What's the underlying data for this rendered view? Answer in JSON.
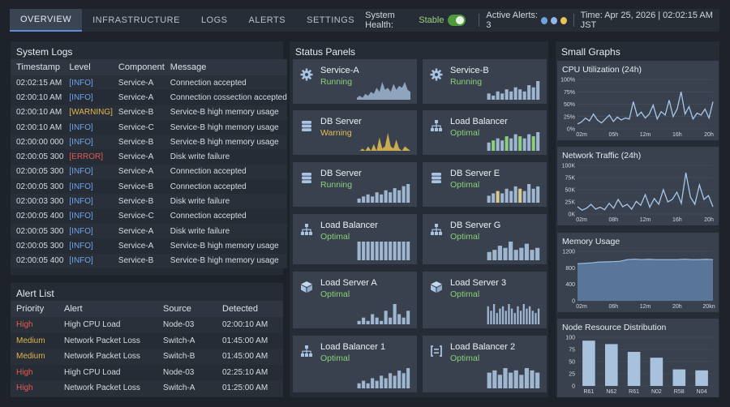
{
  "nav": {
    "tabs": [
      "OVERVIEW",
      "INFRASTRUCTURE",
      "LOGS",
      "ALERTS",
      "SETTINGS"
    ],
    "health_label": "System Health:",
    "health_value": "Stable",
    "alerts_label": "Active Alerts: 3",
    "time": "Time: Apr 25, 2026 | 02:02:15 AM JST",
    "alert_dot_colors": [
      "#6fa3de",
      "#8fb8e8",
      "#e9c453"
    ]
  },
  "logs": {
    "title": "System Logs",
    "columns": [
      "Timestamp",
      "Level",
      "Component",
      "Message"
    ],
    "rows": [
      {
        "t": "02:02:15 AM",
        "level": "[INFO]",
        "comp": "Service-A",
        "msg": "Connection accepted"
      },
      {
        "t": "02:00:10 AM",
        "level": "[INFO]",
        "comp": "Service-A",
        "msg": "Connection cossection accepted"
      },
      {
        "t": "02:00:10 AM",
        "level": "[WARNING]",
        "comp": "Service-B",
        "msg": "Service-B high memory usage"
      },
      {
        "t": "02:00:10 AM",
        "level": "[INFO]",
        "comp": "Service-C",
        "msg": "Service-B high memory usage"
      },
      {
        "t": "02:00:00 000",
        "level": "[INFO]",
        "comp": "Service-B",
        "msg": "Service-B high memory usage"
      },
      {
        "t": "02:00:05 300",
        "level": "[ERROR]",
        "comp": "Service-A",
        "msg": "Disk write failure"
      },
      {
        "t": "02:00:05 300",
        "level": "[INFO]",
        "comp": "Service-A",
        "msg": "Connection accepted"
      },
      {
        "t": "02:00:05 300",
        "level": "[INFO]",
        "comp": "Service-B",
        "msg": "Connection accepted"
      },
      {
        "t": "02:00:03 300",
        "level": "[INFO]",
        "comp": "Service-B",
        "msg": "Disk write failure"
      },
      {
        "t": "02:00:05 400",
        "level": "[INFO]",
        "comp": "Service-C",
        "msg": "Connection accepted"
      },
      {
        "t": "02:00:05 300",
        "level": "[INFO]",
        "comp": "Service-A",
        "msg": "Disk write failure"
      },
      {
        "t": "02:00:05 300",
        "level": "[INFO]",
        "comp": "Service-A",
        "msg": "Service-B high memory usage"
      },
      {
        "t": "02:00:05 400",
        "level": "[INFO]",
        "comp": "Service-B",
        "msg": "Service-B high memory usage"
      }
    ]
  },
  "alerts": {
    "title": "Alert List",
    "columns": [
      "Priority",
      "Alert",
      "Source",
      "Detected"
    ],
    "rows": [
      {
        "p": "High",
        "alert": "High CPU Load",
        "src": "Node-03",
        "time": "02:00:10 AM"
      },
      {
        "p": "Medium",
        "alert": "Network Packet Loss",
        "src": "Switch-A",
        "time": "01:45:00 AM"
      },
      {
        "p": "Medium",
        "alert": "Network Packet Loss",
        "src": "Switch-B",
        "time": "01:45:00 AM"
      },
      {
        "p": "High",
        "alert": "High CPU Load",
        "src": "Node-03",
        "time": "02:25:10 AM"
      },
      {
        "p": "High",
        "alert": "Network Packet Loss",
        "src": "Switch-A",
        "time": "01:25:00 AM"
      }
    ]
  },
  "status": {
    "title": "Status Panels",
    "cards": [
      {
        "name": "Service-A",
        "status": "Running",
        "icon": "gear-icon",
        "spark": "area",
        "values": [
          1,
          2,
          1,
          3,
          2,
          4,
          3,
          6,
          4,
          9,
          5,
          6,
          4,
          8,
          5,
          7,
          6,
          9,
          5,
          4
        ],
        "color": "#9fb6d1"
      },
      {
        "name": "Service-B",
        "status": "Running",
        "icon": "gear-icon",
        "spark": "bars",
        "values": [
          3,
          2,
          4,
          3,
          5,
          4,
          6,
          5,
          4,
          7,
          6,
          9
        ],
        "color": "#9fb6d1"
      },
      {
        "name": "DB Server",
        "status": "Warning",
        "icon": "database-icon",
        "spark": "area-warn",
        "values": [
          0,
          0,
          1,
          0,
          2,
          0,
          3,
          0,
          6,
          1,
          2,
          8,
          2,
          1,
          5,
          1,
          0,
          2,
          1,
          0
        ],
        "color": "#e3be52"
      },
      {
        "name": "Load Balancer",
        "status": "Optimal",
        "icon": "network-icon",
        "spark": "bars",
        "values": [
          4,
          5,
          6,
          5,
          7,
          6,
          8,
          7,
          6,
          8,
          7,
          9
        ],
        "color": "#8ad07a"
      },
      {
        "name": "DB Server",
        "status": "Running",
        "icon": "database-icon",
        "spark": "bars",
        "values": [
          2,
          3,
          4,
          3,
          5,
          4,
          6,
          5,
          7,
          6,
          8,
          9
        ],
        "color": "#9fb6d1"
      },
      {
        "name": "DB Server E",
        "status": "Optimal",
        "icon": "database-icon",
        "spark": "bars",
        "values": [
          3,
          4,
          5,
          4,
          6,
          5,
          7,
          6,
          5,
          8,
          6,
          7
        ],
        "color": "#c9c08a"
      },
      {
        "name": "Load Balancer",
        "status": "Optimal",
        "icon": "network-icon",
        "spark": "bars",
        "values": [
          8,
          8,
          8,
          8,
          8,
          8,
          8,
          8,
          8,
          8,
          8,
          8
        ],
        "color": "#9fb6d1"
      },
      {
        "name": "DB Server G",
        "status": "Optimal",
        "icon": "network-icon",
        "spark": "bars",
        "values": [
          4,
          5,
          7,
          6,
          9,
          5,
          6,
          8,
          5,
          6
        ],
        "color": "#9fb6d1"
      },
      {
        "name": "Load Server A",
        "status": "Optimal",
        "icon": "cube-icon",
        "spark": "bars",
        "values": [
          1,
          2,
          1,
          3,
          2,
          1,
          4,
          2,
          6,
          3,
          2,
          4
        ],
        "color": "#9fb6d1"
      },
      {
        "name": "Load Server 3",
        "status": "Optimal",
        "icon": "cube-icon",
        "spark": "bars",
        "values": [
          8,
          6,
          9,
          5,
          7,
          8,
          6,
          9,
          7,
          5,
          8,
          6,
          9,
          7,
          8,
          6,
          5,
          7
        ],
        "color": "#9fb6d1"
      },
      {
        "name": "Load Balancer 1",
        "status": "Optimal",
        "icon": "network-icon",
        "spark": "bars",
        "values": [
          2,
          3,
          2,
          4,
          3,
          5,
          4,
          6,
          5,
          7,
          6,
          8
        ],
        "color": "#9fb6d1"
      },
      {
        "name": "Load Balancer 2",
        "status": "Optimal",
        "icon": "brackets-icon",
        "spark": "bars",
        "values": [
          7,
          8,
          6,
          9,
          7,
          8,
          6,
          9,
          8,
          7
        ],
        "color": "#9fb6d1"
      }
    ]
  },
  "graphs": {
    "title": "Small Graphs"
  },
  "chart_data": [
    {
      "type": "line",
      "title": "CPU Utilization (24h)",
      "ylim": [
        0,
        100
      ],
      "yticks": [
        "0%",
        "25%",
        "50%",
        "75%",
        "100%"
      ],
      "xticks": [
        "02m",
        "05h",
        "12m",
        "16h",
        "20h"
      ],
      "values": [
        10,
        14,
        22,
        16,
        30,
        18,
        12,
        20,
        28,
        15,
        24,
        18,
        22,
        20,
        55,
        26,
        34,
        22,
        30,
        48,
        20,
        35,
        28,
        58,
        25,
        40,
        75,
        30,
        45,
        20,
        32,
        28,
        40,
        22,
        55
      ]
    },
    {
      "type": "line",
      "title": "Network Traffic (24h)",
      "ylim": [
        0,
        100000
      ],
      "yticks": [
        "0K",
        "25K",
        "50K",
        "75K",
        "100K"
      ],
      "xticks": [
        "02m",
        "08h",
        "12m",
        "16h",
        "20h"
      ],
      "values": [
        15000,
        8000,
        12000,
        20000,
        10000,
        14000,
        9000,
        22000,
        12000,
        30000,
        15000,
        20000,
        10000,
        26000,
        18000,
        40000,
        14000,
        32000,
        20000,
        50000,
        25000,
        30000,
        45000,
        22000,
        85000,
        35000,
        20000,
        60000,
        30000,
        38000,
        15000
      ]
    },
    {
      "type": "area",
      "title": "Memory Usage",
      "ylim": [
        0,
        1200
      ],
      "yticks": [
        "0",
        "400",
        "800",
        "1200"
      ],
      "xticks": [
        "02m",
        "06h",
        "12m",
        "20h",
        "20kn"
      ],
      "values": [
        900,
        910,
        920,
        940,
        945,
        950,
        960,
        1000,
        1010,
        1000,
        1005,
        1000,
        1000,
        1000,
        1000,
        1010,
        1000,
        1000,
        1005,
        1000
      ]
    },
    {
      "type": "bar",
      "title": "Node Resource Distribution",
      "ylim": [
        0,
        100
      ],
      "yticks": [
        "0",
        "25",
        "50",
        "75",
        "100"
      ],
      "categories": [
        "R61",
        "N62",
        "R61",
        "N02",
        "R58",
        "N04"
      ],
      "values": [
        93,
        86,
        70,
        58,
        34,
        32
      ]
    }
  ]
}
